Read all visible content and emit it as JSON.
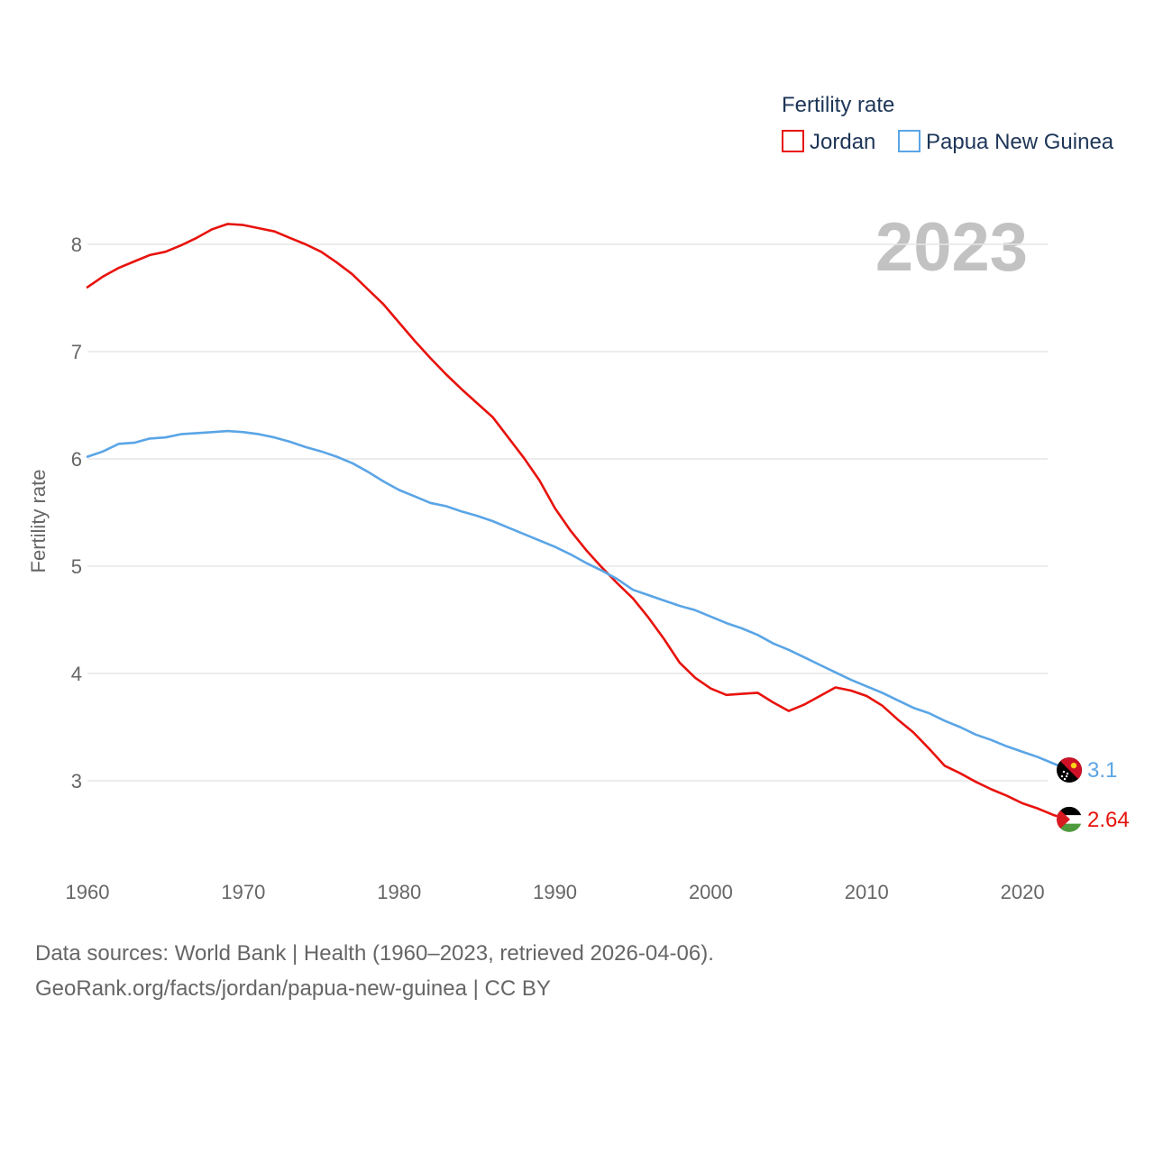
{
  "colors": {
    "jordan": "#e8120c",
    "png": "#5aa5e6"
  },
  "chart_data": {
    "type": "line",
    "title": "Fertility rate",
    "ylabel": "Fertility rate",
    "xlabel": "",
    "year_label": "2023",
    "xlim": [
      1960,
      2023
    ],
    "ylim": [
      2.4,
      8.4
    ],
    "x_ticks": [
      1960,
      1970,
      1980,
      1990,
      2000,
      2010,
      2020
    ],
    "y_ticks": [
      3,
      4,
      5,
      6,
      7,
      8
    ],
    "legend": [
      "Jordan",
      "Papua New Guinea"
    ],
    "x": [
      1960,
      1961,
      1962,
      1963,
      1964,
      1965,
      1966,
      1967,
      1968,
      1969,
      1970,
      1971,
      1972,
      1973,
      1974,
      1975,
      1976,
      1977,
      1978,
      1979,
      1980,
      1981,
      1982,
      1983,
      1984,
      1985,
      1986,
      1987,
      1988,
      1989,
      1990,
      1991,
      1992,
      1993,
      1994,
      1995,
      1996,
      1997,
      1998,
      1999,
      2000,
      2001,
      2002,
      2003,
      2004,
      2005,
      2006,
      2007,
      2008,
      2009,
      2010,
      2011,
      2012,
      2013,
      2014,
      2015,
      2016,
      2017,
      2018,
      2019,
      2020,
      2021,
      2022,
      2023
    ],
    "series": [
      {
        "name": "Jordan",
        "end_label": "2.64",
        "values": [
          7.6,
          7.7,
          7.78,
          7.84,
          7.9,
          7.93,
          7.99,
          8.06,
          8.14,
          8.19,
          8.18,
          8.15,
          8.12,
          8.06,
          8.0,
          7.93,
          7.83,
          7.72,
          7.58,
          7.44,
          7.27,
          7.1,
          6.94,
          6.79,
          6.65,
          6.52,
          6.39,
          6.2,
          6.01,
          5.8,
          5.54,
          5.33,
          5.15,
          4.99,
          4.84,
          4.7,
          4.52,
          4.32,
          4.1,
          3.96,
          3.86,
          3.8,
          3.81,
          3.82,
          3.73,
          3.65,
          3.71,
          3.79,
          3.87,
          3.84,
          3.79,
          3.7,
          3.57,
          3.45,
          3.3,
          3.14,
          3.07,
          2.99,
          2.92,
          2.86,
          2.79,
          2.74,
          2.68,
          2.64
        ]
      },
      {
        "name": "Papua New Guinea",
        "end_label": "3.1",
        "values": [
          6.02,
          6.07,
          6.14,
          6.15,
          6.19,
          6.2,
          6.23,
          6.24,
          6.25,
          6.26,
          6.25,
          6.23,
          6.2,
          6.16,
          6.11,
          6.07,
          6.02,
          5.96,
          5.88,
          5.79,
          5.71,
          5.65,
          5.59,
          5.56,
          5.51,
          5.47,
          5.42,
          5.36,
          5.3,
          5.24,
          5.18,
          5.11,
          5.03,
          4.96,
          4.88,
          4.78,
          4.73,
          4.68,
          4.63,
          4.59,
          4.53,
          4.47,
          4.42,
          4.36,
          4.28,
          4.22,
          4.15,
          4.08,
          4.01,
          3.94,
          3.88,
          3.82,
          3.75,
          3.68,
          3.63,
          3.56,
          3.5,
          3.43,
          3.38,
          3.32,
          3.27,
          3.22,
          3.16,
          3.1
        ]
      }
    ]
  },
  "footer": {
    "line1": "Data sources: World Bank | Health (1960–2023, retrieved 2026-04-06).",
    "line2": "GeoRank.org/facts/jordan/papua-new-guinea | CC BY"
  }
}
